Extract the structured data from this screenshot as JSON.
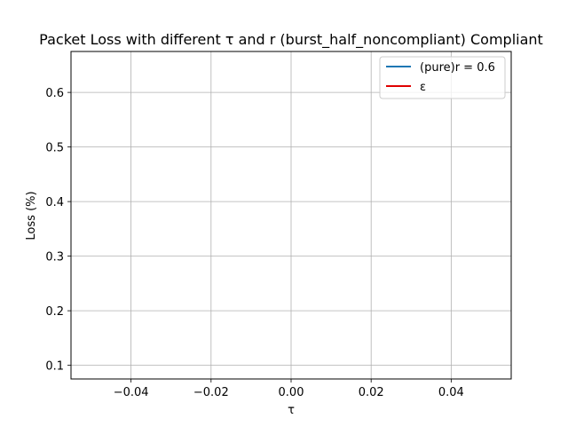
{
  "chart_data": {
    "type": "line",
    "title": "Packet Loss with different τ and r (burst_half_noncompliant) Compliant",
    "xlabel": "τ",
    "ylabel": "Loss (%)",
    "xlim": [
      -0.055,
      0.055
    ],
    "ylim": [
      0.075,
      0.675
    ],
    "xticks": [
      -0.04,
      -0.02,
      0.0,
      0.02,
      0.04
    ],
    "xtick_labels": [
      "−0.04",
      "−0.02",
      "0.00",
      "0.02",
      "0.04"
    ],
    "yticks": [
      0.1,
      0.2,
      0.3,
      0.4,
      0.5,
      0.6
    ],
    "ytick_labels": [
      "0.1",
      "0.2",
      "0.3",
      "0.4",
      "0.5",
      "0.6"
    ],
    "grid": true,
    "legend_position": "top-right",
    "series": [
      {
        "name": "(pure)r = 0.6",
        "color": "#1f77b4",
        "x": [],
        "y": []
      },
      {
        "name": "ε",
        "color": "#e00000",
        "x": [],
        "y": []
      }
    ]
  }
}
